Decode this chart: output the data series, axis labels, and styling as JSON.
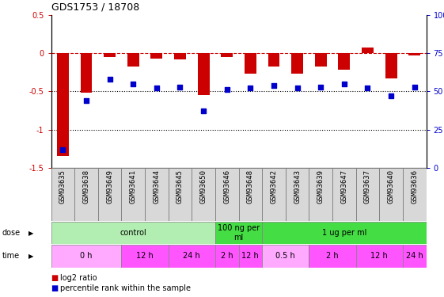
{
  "title": "GDS1753 / 18708",
  "samples": [
    "GSM93635",
    "GSM93638",
    "GSM93649",
    "GSM93641",
    "GSM93644",
    "GSM93645",
    "GSM93650",
    "GSM93646",
    "GSM93648",
    "GSM93642",
    "GSM93643",
    "GSM93639",
    "GSM93647",
    "GSM93637",
    "GSM93640",
    "GSM93636"
  ],
  "log2_ratio": [
    -1.35,
    -0.52,
    -0.05,
    -0.18,
    -0.07,
    -0.08,
    -0.55,
    -0.05,
    -0.27,
    -0.18,
    -0.27,
    -0.18,
    -0.22,
    0.07,
    -0.33,
    -0.03
  ],
  "pct_rank": [
    12,
    44,
    58,
    55,
    52,
    53,
    37,
    51,
    52,
    54,
    52,
    53,
    55,
    52,
    47,
    53
  ],
  "ylim_left": [
    -1.5,
    0.5
  ],
  "ylim_right": [
    0,
    100
  ],
  "dose_groups": [
    {
      "label": "control",
      "start": 0,
      "end": 7,
      "color": "#B2EEB2"
    },
    {
      "label": "100 ng per\nml",
      "start": 7,
      "end": 9,
      "color": "#44DD44"
    },
    {
      "label": "1 ug per ml",
      "start": 9,
      "end": 16,
      "color": "#44DD44"
    }
  ],
  "time_groups": [
    {
      "label": "0 h",
      "start": 0,
      "end": 3,
      "color": "#FFAAFF"
    },
    {
      "label": "12 h",
      "start": 3,
      "end": 5,
      "color": "#FF55FF"
    },
    {
      "label": "24 h",
      "start": 5,
      "end": 7,
      "color": "#FF55FF"
    },
    {
      "label": "2 h",
      "start": 7,
      "end": 8,
      "color": "#FF55FF"
    },
    {
      "label": "12 h",
      "start": 8,
      "end": 9,
      "color": "#FF55FF"
    },
    {
      "label": "0.5 h",
      "start": 9,
      "end": 11,
      "color": "#FFAAFF"
    },
    {
      "label": "2 h",
      "start": 11,
      "end": 13,
      "color": "#FF55FF"
    },
    {
      "label": "12 h",
      "start": 13,
      "end": 15,
      "color": "#FF55FF"
    },
    {
      "label": "24 h",
      "start": 15,
      "end": 16,
      "color": "#FF55FF"
    }
  ],
  "bar_color": "#CC0000",
  "dot_color": "#0000CC",
  "ref_line_color": "#CC0000",
  "legend_items": [
    {
      "label": "log2 ratio",
      "color": "#CC0000"
    },
    {
      "label": "percentile rank within the sample",
      "color": "#0000CC"
    }
  ],
  "bar_width": 0.5,
  "dot_size": 22
}
